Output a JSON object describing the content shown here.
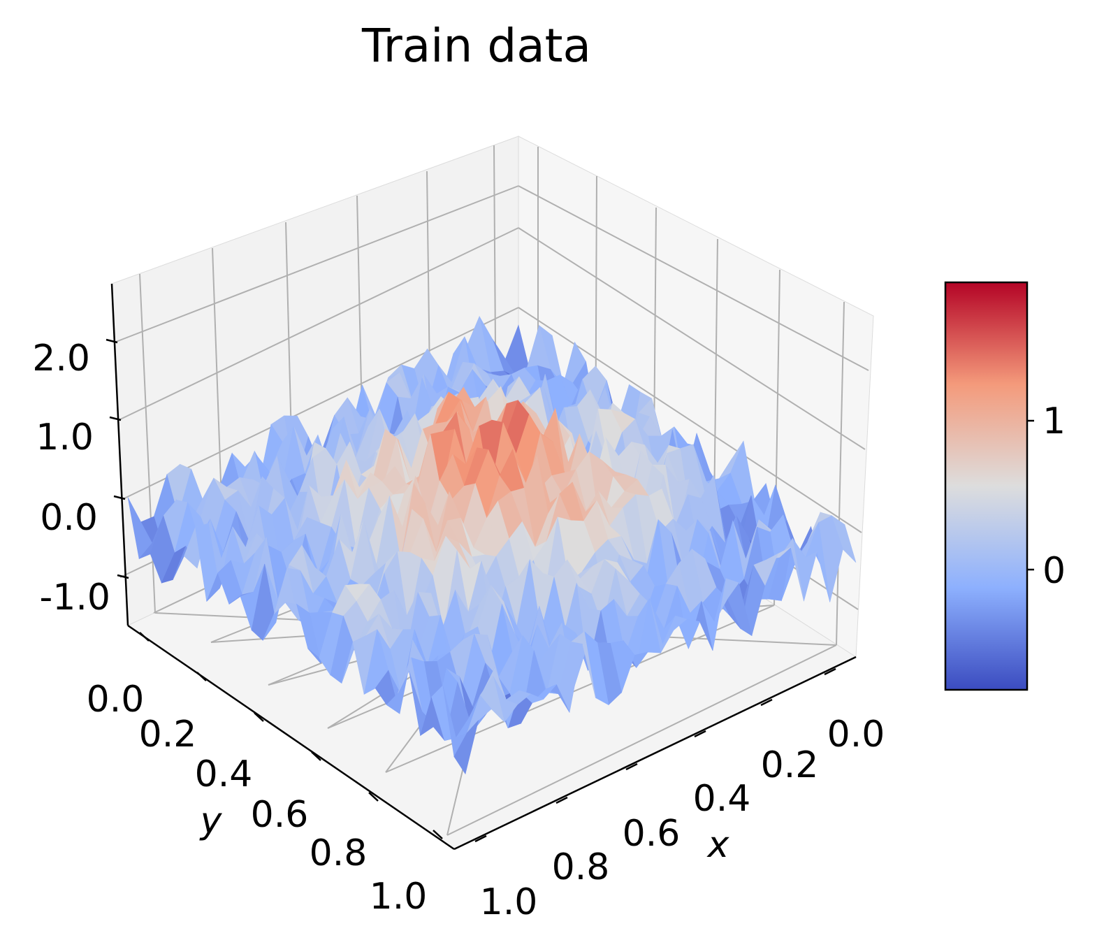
{
  "chart_data": {
    "type": "surface3d",
    "title": "Train data",
    "xlabel": "x",
    "ylabel": "y",
    "zlabel": "",
    "x_ticks": [
      "0.0",
      "0.2",
      "0.4",
      "0.6",
      "0.8",
      "1.0"
    ],
    "y_ticks": [
      "0.0",
      "0.2",
      "0.4",
      "0.6",
      "0.8",
      "1.0"
    ],
    "z_ticks": [
      "-1.0",
      "0.0",
      "1.0",
      "2.0"
    ],
    "xlim": [
      0,
      1
    ],
    "ylim": [
      0,
      1
    ],
    "zlim": [
      -1.3,
      2.6
    ],
    "colormap": "coolwarm",
    "colorbar_ticks": [
      "0",
      "1"
    ],
    "colorbar_range": [
      -0.55,
      1.75
    ],
    "surface_description_z": "noisy Gaussian bump: approx 1.2*exp(-((x-0.5)^2+(y-0.5)^2)/0.08) plus noise of roughly ±0.5",
    "z_peak": 1.9,
    "z_min": -0.55,
    "grid": true
  }
}
